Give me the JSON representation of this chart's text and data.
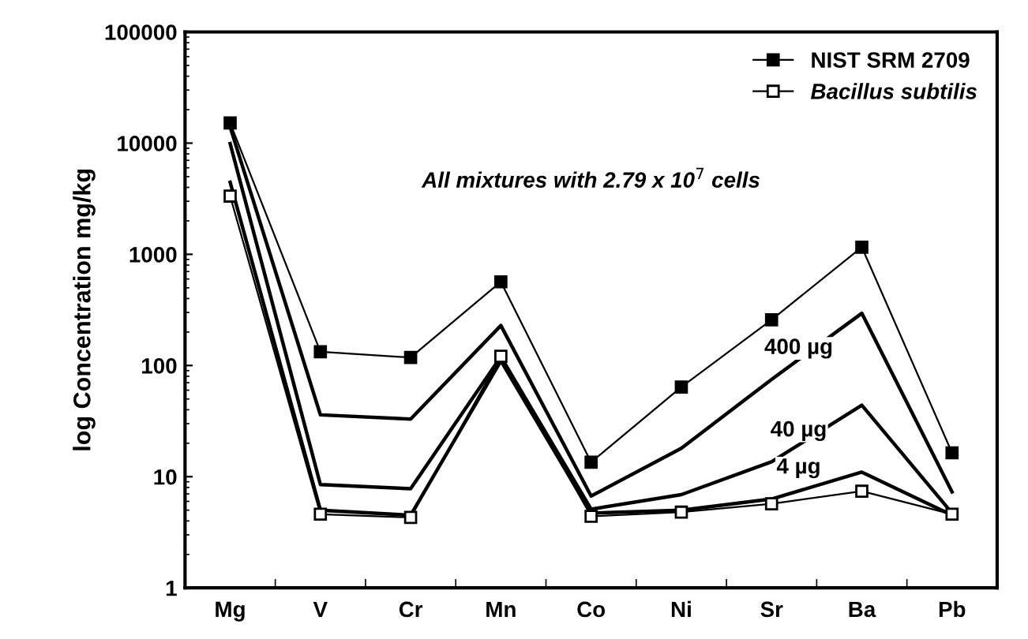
{
  "chart_data": {
    "type": "line",
    "ylabel": "log Concentration mg/kg",
    "categories": [
      "Mg",
      "V",
      "Cr",
      "Mn",
      "Co",
      "Ni",
      "Sr",
      "Ba",
      "Pb"
    ],
    "log": "y",
    "ylim": [
      1,
      100000
    ],
    "yticks": [
      1,
      10,
      100,
      1000,
      10000,
      100000
    ],
    "grid": false,
    "legend": "top right",
    "series": [
      {
        "name": "NIST SRM 2709",
        "color": "#000000",
        "marker": "square",
        "values": [
          15200,
          133,
          118,
          566,
          13.5,
          64,
          258,
          1160,
          16.4
        ]
      },
      {
        "name": "400 µg",
        "color": "#000000",
        "marker": "none",
        "values": [
          14000,
          36,
          33,
          229,
          6.7,
          18,
          75,
          295,
          7.3
        ]
      },
      {
        "name": "40 µg",
        "color": "#000000",
        "marker": "none",
        "values": [
          9900,
          8.5,
          7.8,
          120,
          5.1,
          6.9,
          13.6,
          44,
          4.7
        ]
      },
      {
        "name": "4 µg",
        "color": "#000000",
        "marker": "none",
        "values": [
          4450,
          5.0,
          4.5,
          110,
          4.7,
          5.0,
          6.3,
          11,
          4.5
        ]
      },
      {
        "name": "Bacillus subtilis",
        "color": "#000000",
        "marker": "square",
        "values": [
          3340,
          4.6,
          4.3,
          121,
          4.4,
          4.8,
          5.7,
          7.4,
          4.6
        ]
      }
    ],
    "annotations": [
      "All mixtures with 2.79 x 10$^{7}$ cells"
    ]
  }
}
